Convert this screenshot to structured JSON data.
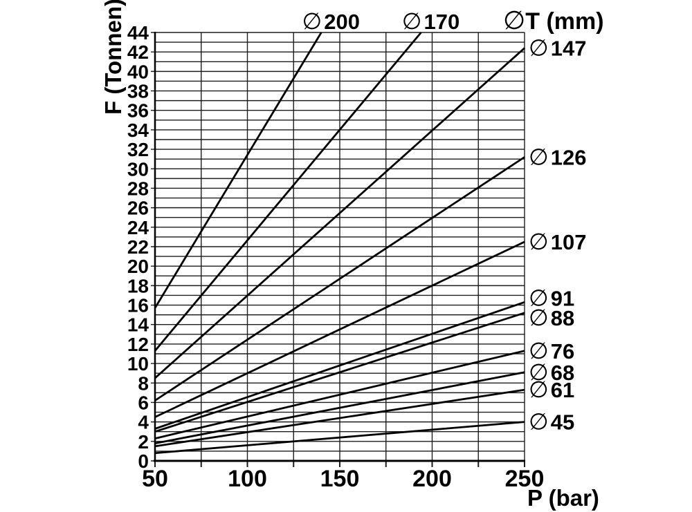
{
  "chart_data": {
    "type": "line",
    "title": "",
    "xlabel": "P (bar)",
    "ylabel": "F (Tonnen)",
    "diameter_symbol": "∅",
    "series_header": "T (mm)",
    "xlim": [
      50,
      250
    ],
    "ylim": [
      0,
      44
    ],
    "x_tick_labels": [
      50,
      100,
      150,
      200,
      250
    ],
    "x_grid_step": 25,
    "y_tick_step": 2,
    "y_grid_step": 1,
    "grid": true,
    "legend_position": "line-end-labels",
    "series": [
      {
        "diameter": "200",
        "label_side": "top",
        "points": [
          [
            50,
            15.7
          ],
          [
            140,
            44
          ]
        ]
      },
      {
        "diameter": "170",
        "label_side": "top",
        "points": [
          [
            50,
            11.3
          ],
          [
            194,
            44
          ]
        ]
      },
      {
        "diameter": "147",
        "label_side": "right",
        "points": [
          [
            50,
            8.5
          ],
          [
            250,
            42.4
          ]
        ]
      },
      {
        "diameter": "126",
        "label_side": "right",
        "points": [
          [
            50,
            6.2
          ],
          [
            250,
            31.2
          ]
        ]
      },
      {
        "diameter": "107",
        "label_side": "right",
        "points": [
          [
            50,
            4.5
          ],
          [
            250,
            22.5
          ]
        ]
      },
      {
        "diameter": "91",
        "label_side": "right",
        "label_dy": -6,
        "points": [
          [
            50,
            3.3
          ],
          [
            250,
            16.3
          ]
        ]
      },
      {
        "diameter": "88",
        "label_side": "right",
        "label_dy": 7,
        "points": [
          [
            50,
            3.0
          ],
          [
            250,
            15.2
          ]
        ]
      },
      {
        "diameter": "76",
        "label_side": "right",
        "points": [
          [
            50,
            2.3
          ],
          [
            250,
            11.3
          ]
        ]
      },
      {
        "diameter": "68",
        "label_side": "right",
        "points": [
          [
            50,
            1.8
          ],
          [
            250,
            9.1
          ]
        ]
      },
      {
        "diameter": "61",
        "label_side": "right",
        "points": [
          [
            50,
            1.5
          ],
          [
            250,
            7.3
          ]
        ]
      },
      {
        "diameter": "45",
        "label_side": "right",
        "points": [
          [
            50,
            0.8
          ],
          [
            250,
            4.0
          ]
        ]
      }
    ]
  },
  "colors": {
    "ink": "#000000",
    "grid": "#1c1c1c",
    "background": "#ffffff"
  }
}
